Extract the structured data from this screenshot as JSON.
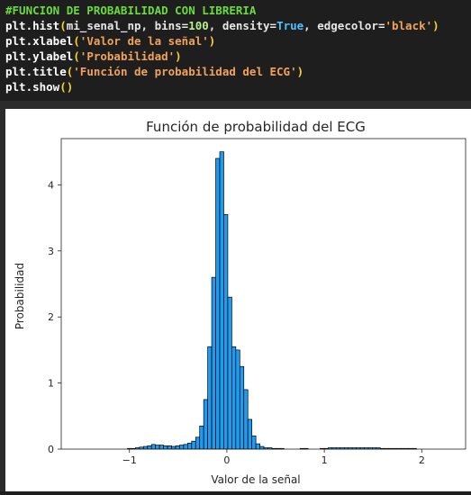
{
  "code": {
    "comment": "#FUNCION DE PROBABILIDAD CON LIBRERIA",
    "line1": {
      "obj": "plt.hist",
      "p_open": "(",
      "arg_var": "mi_senal_np, bins=",
      "bins": "100",
      "arg_density": ", density=",
      "density_val": "True",
      "arg_edge": ", edgecolor=",
      "edge_val": "'black'",
      "p_close": ")"
    },
    "line2": {
      "obj": "plt.xlabel",
      "p_open": "(",
      "str": "'Valor de la señal'",
      "p_close": ")"
    },
    "line3": {
      "obj": "plt.ylabel",
      "p_open": "(",
      "str": "'Probabilidad'",
      "p_close": ")"
    },
    "line4": {
      "obj": "plt.title",
      "p_open": "(",
      "str": "'Función de probabilidad del ECG'",
      "p_close": ")"
    },
    "line5": {
      "obj": "plt.show",
      "p_open": "(",
      "p_close": ")"
    }
  },
  "colors": {
    "bar_fill": "#1f9cf0",
    "bar_edge": "#000000",
    "code_bg": "#1e1e1e",
    "figure_bg": "#ffffff"
  },
  "chart_data": {
    "type": "bar",
    "title": "Función de probabilidad del ECG",
    "xlabel": "Valor de la señal",
    "ylabel": "Probabilidad",
    "xlim": [
      -1.7,
      2.45
    ],
    "ylim": [
      0,
      4.7
    ],
    "xticks": [
      -1,
      0,
      1,
      2
    ],
    "yticks": [
      0,
      1,
      2,
      3,
      4
    ],
    "xtick_labels": [
      "−1",
      "0",
      "1",
      "2"
    ],
    "ytick_labels": [
      "0",
      "1",
      "2",
      "3",
      "4"
    ],
    "grid": false,
    "bin_start": -1.68,
    "bin_width": 0.0412,
    "values": [
      0,
      0,
      0,
      0,
      0,
      0,
      0,
      0,
      0,
      0,
      0,
      0,
      0,
      0,
      0,
      0,
      0.01,
      0.01,
      0.02,
      0.03,
      0.04,
      0.05,
      0.07,
      0.06,
      0.06,
      0.05,
      0.05,
      0.04,
      0.05,
      0.06,
      0.07,
      0.09,
      0.12,
      0.18,
      0.35,
      0.75,
      1.55,
      2.6,
      4.4,
      4.5,
      3.55,
      2.3,
      1.55,
      1.5,
      1.25,
      0.9,
      0.45,
      0.2,
      0.08,
      0.04,
      0.02,
      0.02,
      0.01,
      0.01,
      0.01,
      0,
      0,
      0,
      0,
      0.01,
      0.01,
      0,
      0,
      0,
      0.01,
      0.01,
      0.02,
      0.02,
      0.02,
      0.02,
      0.02,
      0.02,
      0.02,
      0.02,
      0.02,
      0.02,
      0.02,
      0.02,
      0.02,
      0.01,
      0.01,
      0.01,
      0.01,
      0.01,
      0.01,
      0.01,
      0.01,
      0.01,
      0,
      0,
      0,
      0,
      0,
      0,
      0,
      0,
      0,
      0,
      0,
      0
    ]
  }
}
